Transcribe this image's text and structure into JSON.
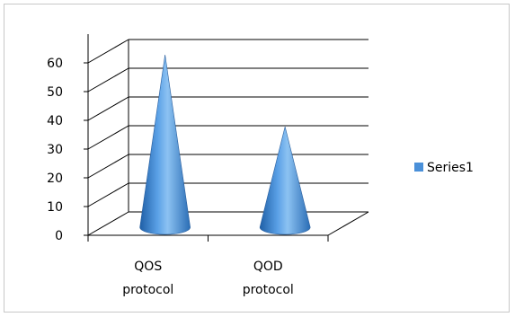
{
  "chart_data": {
    "type": "bar",
    "style": "3d-cone",
    "categories": [
      "QOS protocol",
      "QOD protocol"
    ],
    "category_lines": [
      [
        "QOS",
        "protocol"
      ],
      [
        "QOD",
        "protocol"
      ]
    ],
    "series": [
      {
        "name": "Series1",
        "values": [
          60,
          35
        ],
        "color": "#4a90d9"
      }
    ],
    "yticks": [
      0,
      10,
      20,
      30,
      40,
      50,
      60
    ],
    "ylim": [
      0,
      70
    ],
    "grid": true,
    "legend_position": "right",
    "title": "",
    "xlabel": "",
    "ylabel": ""
  },
  "legend": {
    "label": "Series1",
    "color": "#4a90d9"
  }
}
